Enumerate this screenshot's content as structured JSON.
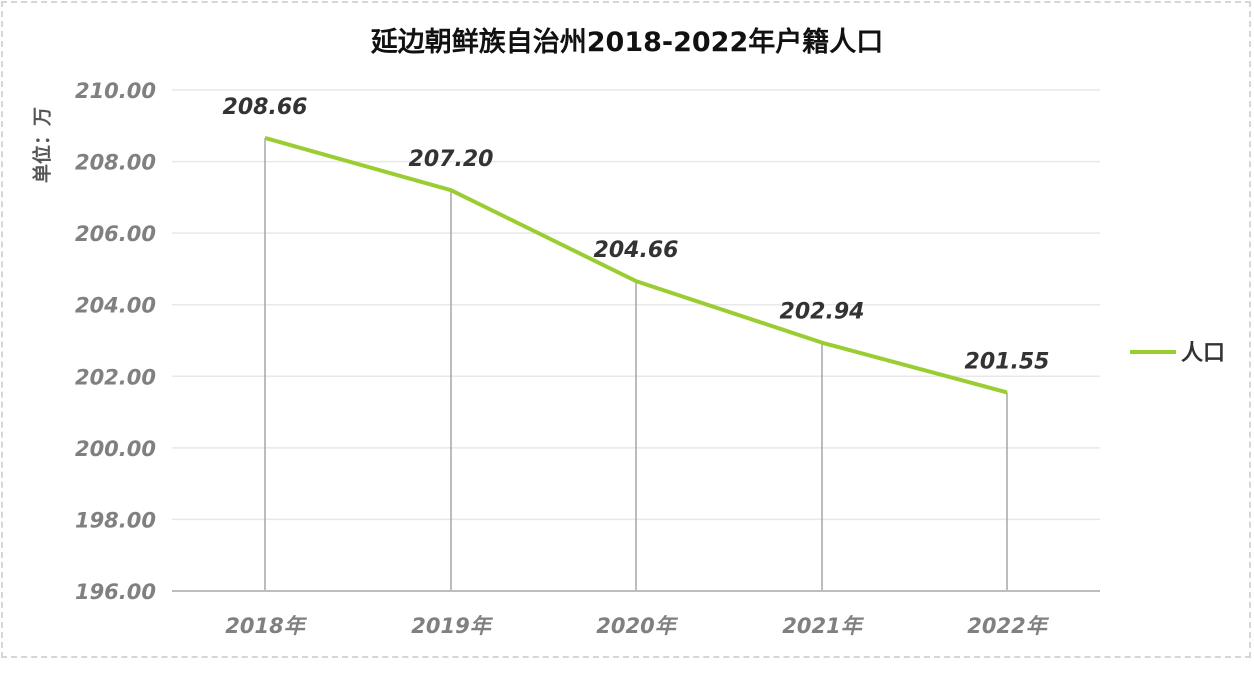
{
  "chart_data": {
    "type": "line",
    "title": "延边朝鲜族自治州2018-2022年户籍人口",
    "ylabel": "单位：万",
    "xlabel": "",
    "categories": [
      "2018年",
      "2019年",
      "2020年",
      "2021年",
      "2022年"
    ],
    "series": [
      {
        "name": "人口",
        "values": [
          208.66,
          207.2,
          204.66,
          202.94,
          201.55
        ]
      }
    ],
    "data_labels": [
      "208.66",
      "207.20",
      "204.66",
      "202.94",
      "201.55"
    ],
    "ylim": [
      196,
      210
    ],
    "yticks": [
      "210.00",
      "208.00",
      "206.00",
      "204.00",
      "202.00",
      "200.00",
      "198.00",
      "196.00"
    ],
    "grid": true,
    "legend": "right",
    "colors": {
      "line": "#9acd32",
      "grid": "#e8e8e8",
      "axis": "#bdbdbd",
      "drop": "#999999"
    }
  }
}
